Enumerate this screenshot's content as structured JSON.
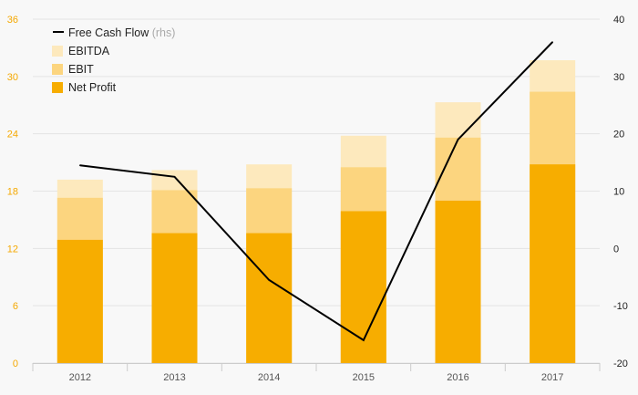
{
  "chart_data": {
    "type": "bar",
    "stacked_overlap": true,
    "categories": [
      "2012",
      "2013",
      "2014",
      "2015",
      "2016",
      "2017"
    ],
    "series": [
      {
        "name": "EBITDA",
        "type": "bar",
        "axis": "left",
        "color": "#fde9bd",
        "values": [
          19.2,
          20.2,
          20.8,
          23.8,
          27.3,
          31.7
        ]
      },
      {
        "name": "EBIT",
        "type": "bar",
        "axis": "left",
        "color": "#fcd57f",
        "values": [
          17.3,
          18.1,
          18.3,
          20.5,
          23.6,
          28.4
        ]
      },
      {
        "name": "Net Profit",
        "type": "bar",
        "axis": "left",
        "color": "#f7ad00",
        "values": [
          12.9,
          13.6,
          13.6,
          15.9,
          17.0,
          20.8
        ]
      },
      {
        "name": "Free Cash Flow",
        "name_suffix": "(rhs)",
        "type": "line",
        "axis": "right",
        "color": "#000000",
        "values": [
          14.5,
          12.5,
          -5.5,
          -16.0,
          19.0,
          36.0
        ]
      }
    ],
    "y_left": {
      "min": 0,
      "max": 36,
      "ticks": [
        "0",
        "6",
        "12",
        "18",
        "24",
        "30",
        "36"
      ],
      "color": "#f5a800"
    },
    "y_right": {
      "min": -20,
      "max": 40,
      "ticks": [
        "-20",
        "-10",
        "0",
        "10",
        "20",
        "30",
        "40"
      ],
      "color": "#222222"
    },
    "grid": true,
    "legend_position": "top-left"
  }
}
